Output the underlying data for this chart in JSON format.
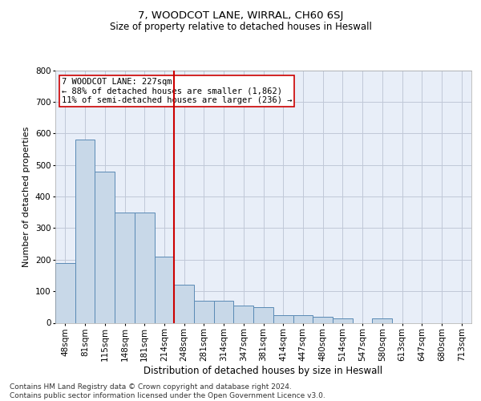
{
  "title": "7, WOODCOT LANE, WIRRAL, CH60 6SJ",
  "subtitle": "Size of property relative to detached houses in Heswall",
  "xlabel": "Distribution of detached houses by size in Heswall",
  "ylabel": "Number of detached properties",
  "categories": [
    "48sqm",
    "81sqm",
    "115sqm",
    "148sqm",
    "181sqm",
    "214sqm",
    "248sqm",
    "281sqm",
    "314sqm",
    "347sqm",
    "381sqm",
    "414sqm",
    "447sqm",
    "480sqm",
    "514sqm",
    "547sqm",
    "580sqm",
    "613sqm",
    "647sqm",
    "680sqm",
    "713sqm"
  ],
  "values": [
    190,
    580,
    480,
    350,
    350,
    210,
    120,
    70,
    70,
    55,
    50,
    25,
    25,
    20,
    15,
    0,
    15,
    0,
    0,
    0,
    0
  ],
  "bar_color": "#c8d8e8",
  "bar_edge_color": "#5a8ab5",
  "grid_color": "#c0c8d8",
  "bg_color": "#e8eef8",
  "vline_x_index": 5.5,
  "vline_color": "#cc0000",
  "annotation_text": "7 WOODCOT LANE: 227sqm\n← 88% of detached houses are smaller (1,862)\n11% of semi-detached houses are larger (236) →",
  "annotation_box_color": "#ffffff",
  "annotation_box_edge": "#cc0000",
  "ylim": [
    0,
    800
  ],
  "yticks": [
    0,
    100,
    200,
    300,
    400,
    500,
    600,
    700,
    800
  ],
  "footer_text": "Contains HM Land Registry data © Crown copyright and database right 2024.\nContains public sector information licensed under the Open Government Licence v3.0.",
  "title_fontsize": 9.5,
  "subtitle_fontsize": 8.5,
  "xlabel_fontsize": 8.5,
  "ylabel_fontsize": 8,
  "tick_fontsize": 7.5,
  "annotation_fontsize": 7.5,
  "footer_fontsize": 6.5
}
